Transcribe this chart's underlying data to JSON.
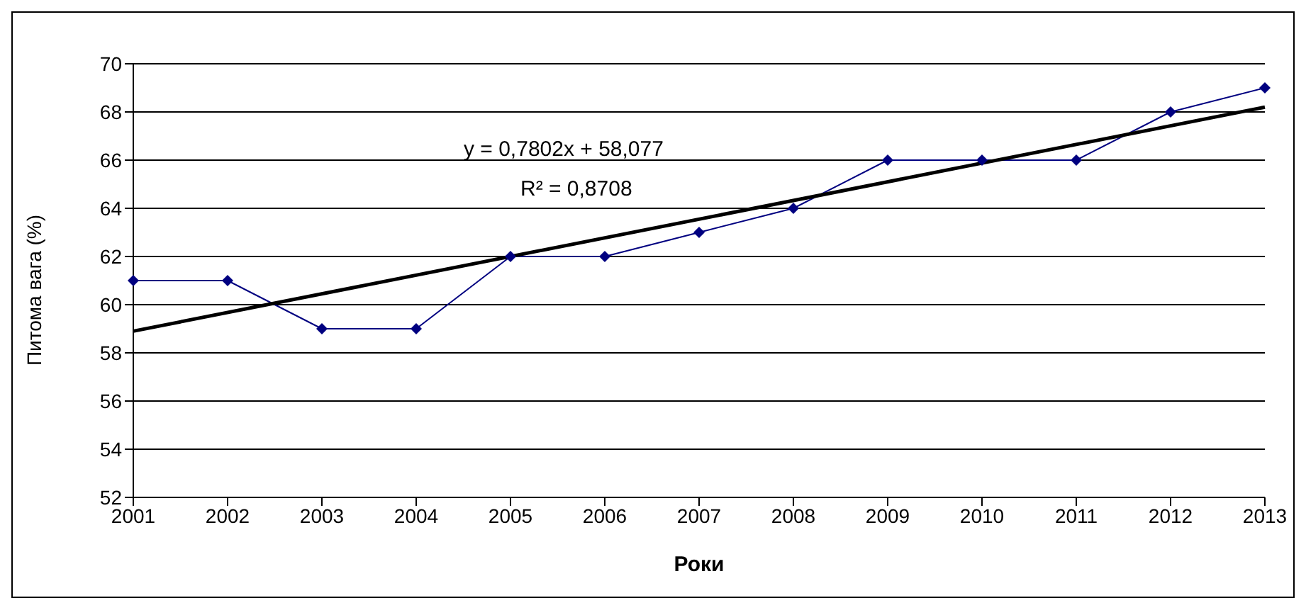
{
  "chart_data": {
    "type": "line",
    "xlabel": "Роки",
    "ylabel": "Питома вага (%)",
    "categories": [
      "2001",
      "2002",
      "2003",
      "2004",
      "2005",
      "2006",
      "2007",
      "2008",
      "2009",
      "2010",
      "2011",
      "2012",
      "2013"
    ],
    "series": [
      {
        "color": "#000080",
        "values": [
          61,
          61,
          59,
          59,
          62,
          62,
          63,
          64,
          66,
          66,
          66,
          68,
          69
        ],
        "marker": "diamond"
      },
      {
        "type": "line",
        "color": "#000000",
        "values": [
          58.9,
          null,
          null,
          null,
          null,
          null,
          null,
          null,
          null,
          null,
          null,
          null,
          68.2
        ],
        "marker": "none"
      }
    ],
    "ylim": [
      52,
      70
    ],
    "yticks": [
      52,
      54,
      56,
      58,
      60,
      62,
      64,
      66,
      68,
      70
    ],
    "grid": "y",
    "annotations": [
      "y = 0,7802x + 58,077",
      "R² = 0,8708"
    ]
  }
}
